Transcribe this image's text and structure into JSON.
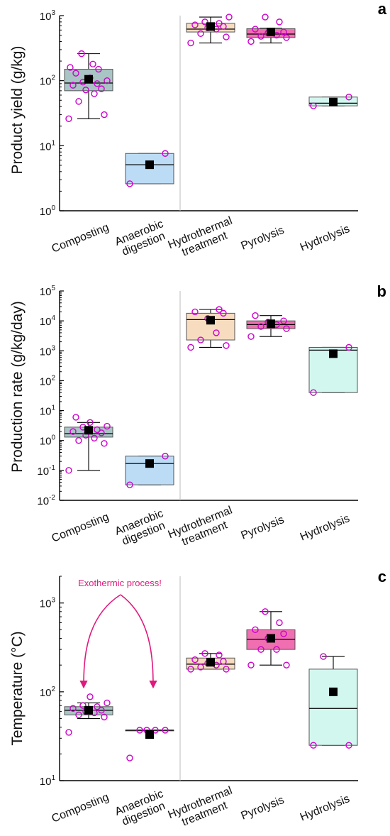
{
  "chart_data": [
    {
      "type": "box",
      "panel_label": "a",
      "ylabel": "Product yield (g/kg)",
      "yscale": "log",
      "ylim": [
        1,
        1000
      ],
      "y_ticks": [
        {
          "base": "10",
          "exp": "0"
        },
        {
          "base": "10",
          "exp": "1"
        },
        {
          "base": "10",
          "exp": "2"
        },
        {
          "base": "10",
          "exp": "3"
        }
      ],
      "categories": [
        [
          "Composting"
        ],
        [
          "Anaerobic",
          "digestion"
        ],
        [
          "Hydrothermal",
          "treatment"
        ],
        [
          "Pyrolysis"
        ],
        [
          "Hydrolysis"
        ]
      ],
      "boxes": [
        {
          "q1": 70,
          "median": 92,
          "q3": 150,
          "whisker_low": 26,
          "whisker_high": 260,
          "mean": 105,
          "fill": "#a9c4c4",
          "points": [
            26,
            30,
            48,
            63,
            72,
            75,
            85,
            90,
            95,
            100,
            110,
            130,
            150,
            160,
            180,
            260
          ]
        },
        {
          "q1": 2.6,
          "median": 5.1,
          "q3": 7.6,
          "whisker_low": 2.6,
          "whisker_high": 7.6,
          "mean": 5.1,
          "fill": "#bcdcf6",
          "points": [
            2.6,
            7.6
          ]
        },
        {
          "q1": 560,
          "median": 620,
          "q3": 760,
          "whisker_low": 380,
          "whisker_high": 950,
          "mean": 680,
          "fill": "#f8dcc0",
          "points": [
            380,
            470,
            530,
            620,
            650,
            680,
            720,
            760,
            800,
            950
          ]
        },
        {
          "q1": 460,
          "median": 520,
          "q3": 630,
          "whisker_low": 380,
          "whisker_high": 640,
          "mean": 560,
          "fill": "#f06fb0",
          "points": [
            400,
            460,
            480,
            500,
            540,
            560,
            620,
            800,
            950
          ]
        },
        {
          "q1": 41,
          "median": 45,
          "q3": 56,
          "whisker_low": 41,
          "whisker_high": 56,
          "mean": 47,
          "fill": "#d2f7ef",
          "points": [
            41,
            56
          ]
        }
      ]
    },
    {
      "type": "box",
      "panel_label": "b",
      "ylabel": "Production rate (g/kg/day)",
      "yscale": "log",
      "ylim": [
        0.01,
        100000
      ],
      "y_ticks": [
        {
          "base": "10",
          "exp": "-2"
        },
        {
          "base": "10",
          "exp": "-1"
        },
        {
          "base": "10",
          "exp": "0"
        },
        {
          "base": "10",
          "exp": "1"
        },
        {
          "base": "10",
          "exp": "2"
        },
        {
          "base": "10",
          "exp": "3"
        },
        {
          "base": "10",
          "exp": "4"
        },
        {
          "base": "10",
          "exp": "5"
        }
      ],
      "categories": [
        [
          "Composting"
        ],
        [
          "Anaerobic",
          "digestion"
        ],
        [
          "Hydrothermal",
          "treatment"
        ],
        [
          "Pyrolysis"
        ],
        [
          "Hydrolysis"
        ]
      ],
      "boxes": [
        {
          "q1": 1.3,
          "median": 1.7,
          "q3": 2.8,
          "whisker_low": 0.1,
          "whisker_high": 4,
          "mean": 2.2,
          "fill": "#a9c4c4",
          "points": [
            0.1,
            0.8,
            1.0,
            1.2,
            1.5,
            1.8,
            2.0,
            2.3,
            2.8,
            3.0,
            4.0,
            6.0
          ]
        },
        {
          "q1": 0.033,
          "median": 0.17,
          "q3": 0.3,
          "whisker_low": 0.033,
          "whisker_high": 0.3,
          "mean": 0.17,
          "fill": "#bcdcf6",
          "points": [
            0.033,
            0.3
          ]
        },
        {
          "q1": 2300,
          "median": 11000,
          "q3": 18000,
          "whisker_low": 1300,
          "whisker_high": 24000,
          "mean": 10500,
          "fill": "#f8dcc0",
          "points": [
            1300,
            1500,
            2300,
            4000,
            12000,
            18000,
            20000,
            24000
          ]
        },
        {
          "q1": 5500,
          "median": 7500,
          "q3": 10000,
          "whisker_low": 3000,
          "whisker_high": 15000,
          "mean": 8000,
          "fill": "#f06fb0",
          "points": [
            3000,
            5500,
            6500,
            7500,
            9000,
            10000,
            15000
          ]
        },
        {
          "q1": 40,
          "median": 1050,
          "q3": 1300,
          "whisker_low": 40,
          "whisker_high": 1300,
          "mean": 800,
          "fill": "#d2f7ef",
          "points": [
            40,
            1300
          ]
        }
      ]
    },
    {
      "type": "box",
      "panel_label": "c",
      "ylabel": "Temperature (°C)",
      "yscale": "log",
      "ylim": [
        10,
        2000
      ],
      "y_ticks": [
        {
          "base": "10",
          "exp": "1"
        },
        {
          "base": "10",
          "exp": "2"
        },
        {
          "base": "10",
          "exp": "3"
        }
      ],
      "categories": [
        [
          "Composting"
        ],
        [
          "Anaerobic",
          "digestion"
        ],
        [
          "Hydrothermal",
          "treatment"
        ],
        [
          "Pyrolysis"
        ],
        [
          "Hydrolysis"
        ]
      ],
      "annotation": "Exothermic process!",
      "boxes": [
        {
          "q1": 55,
          "median": 62,
          "q3": 68,
          "whisker_low": 50,
          "whisker_high": 75,
          "mean": 62,
          "fill": "#a9c4c4",
          "points": [
            35,
            52,
            55,
            58,
            60,
            62,
            65,
            68,
            70,
            75,
            88
          ]
        },
        {
          "q1": 37,
          "median": 37,
          "q3": 37,
          "whisker_low": 37,
          "whisker_high": 37,
          "mean": 33,
          "fill": "#bcdcf6",
          "points": [
            18,
            37,
            37,
            37,
            37
          ]
        },
        {
          "q1": 180,
          "median": 205,
          "q3": 240,
          "whisker_low": 180,
          "whisker_high": 270,
          "mean": 215,
          "fill": "#f8dcc0",
          "points": [
            180,
            180,
            190,
            200,
            210,
            220,
            230,
            260,
            270
          ]
        },
        {
          "q1": 300,
          "median": 390,
          "q3": 500,
          "whisker_low": 200,
          "whisker_high": 800,
          "mean": 400,
          "fill": "#f06fb0",
          "points": [
            200,
            200,
            300,
            300,
            400,
            450,
            500,
            600,
            800
          ]
        },
        {
          "q1": 25,
          "median": 65,
          "q3": 180,
          "whisker_low": 25,
          "whisker_high": 250,
          "mean": 100,
          "fill": "#d2f7ef",
          "points": [
            25,
            25,
            250
          ]
        }
      ]
    }
  ],
  "colors": {
    "point_stroke": "#cc00cc",
    "mean_marker": "#000000",
    "divider": "#bbbbbb",
    "annotation": "#e0197d"
  }
}
